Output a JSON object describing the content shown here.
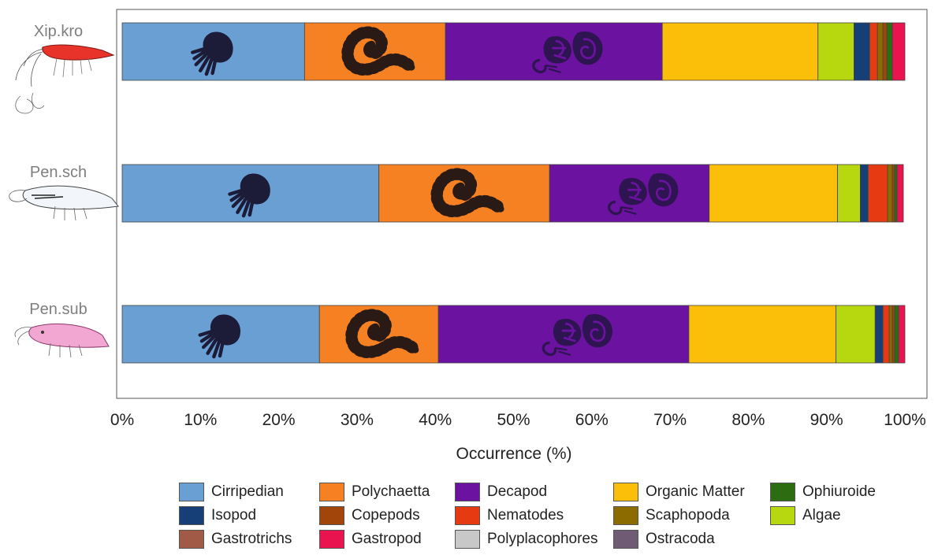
{
  "chart_data": {
    "type": "bar",
    "orientation": "horizontal",
    "stacked": true,
    "categories": [
      "Xip.kro",
      "Pen.sch",
      "Pen.sub"
    ],
    "xlabel": "Occurrence  (%)",
    "xlim": [
      0,
      100
    ],
    "x_ticks": [
      "0%",
      "10%",
      "20%",
      "30%",
      "40%",
      "50%",
      "60%",
      "70%",
      "80%",
      "90%",
      "100%"
    ],
    "grid": false,
    "legend_position": "bottom",
    "series": [
      {
        "name": "Cirripedian",
        "color": "#6a9fd4",
        "values": [
          23.3,
          32.8,
          25.2
        ]
      },
      {
        "name": "Polychaetta",
        "color": "#f58123",
        "values": [
          18.0,
          21.8,
          15.2
        ]
      },
      {
        "name": "Decapod",
        "color": "#6b12a0",
        "values": [
          27.7,
          20.4,
          32.0
        ]
      },
      {
        "name": "Organic Matter",
        "color": "#fbbf0a",
        "values": [
          19.9,
          16.4,
          18.8
        ]
      },
      {
        "name": "Algae",
        "color": "#b7d70e",
        "values": [
          4.6,
          2.9,
          5.0
        ]
      },
      {
        "name": "Isopod",
        "color": "#163f77",
        "values": [
          2.0,
          1.0,
          1.0
        ]
      },
      {
        "name": "Nematodes",
        "color": "#e63a13",
        "values": [
          1.0,
          2.5,
          0.8
        ]
      },
      {
        "name": "Scaphopoda",
        "color": "#8c6b00",
        "values": [
          0.7,
          0.6,
          0.4
        ]
      },
      {
        "name": "Copepods",
        "color": "#a1450b",
        "values": [
          0.5,
          0.3,
          0.3
        ]
      },
      {
        "name": "Ophiuroide",
        "color": "#2c6d12",
        "values": [
          0.7,
          0.3,
          0.5
        ]
      },
      {
        "name": "Gastropod",
        "color": "#e8134f",
        "values": [
          1.6,
          0.8,
          0.8
        ]
      },
      {
        "name": "Gastrotrichs",
        "color": "#a05a45",
        "values": [
          0,
          0,
          0
        ]
      },
      {
        "name": "Polyplacophores",
        "color": "#c8c8c8",
        "values": [
          0,
          0,
          0
        ]
      },
      {
        "name": "Ostracoda",
        "color": "#6f5b74",
        "values": [
          0,
          0,
          0
        ]
      }
    ],
    "legend": [
      {
        "name": "Cirripedian",
        "color": "#6a9fd4"
      },
      {
        "name": "Polychaetta",
        "color": "#f58123"
      },
      {
        "name": "Decapod",
        "color": "#6b12a0"
      },
      {
        "name": "Organic Matter",
        "color": "#fbbf0a"
      },
      {
        "name": "Ophiuroide",
        "color": "#2c6d12"
      },
      {
        "name": "Isopod",
        "color": "#163f77"
      },
      {
        "name": "Copepods",
        "color": "#a1450b"
      },
      {
        "name": "Nematodes",
        "color": "#e63a13"
      },
      {
        "name": "Scaphopoda",
        "color": "#8c6b00"
      },
      {
        "name": "Algae",
        "color": "#b7d70e"
      },
      {
        "name": "Gastrotrichs",
        "color": "#a05a45"
      },
      {
        "name": "Gastropod",
        "color": "#e8134f"
      },
      {
        "name": "Polyplacophores",
        "color": "#c8c8c8"
      },
      {
        "name": "Ostracoda",
        "color": "#6f5b74"
      }
    ],
    "icons": [
      "shrimp-icon",
      "barnacle-icon",
      "polychaete-icon",
      "decapod-icon"
    ]
  }
}
